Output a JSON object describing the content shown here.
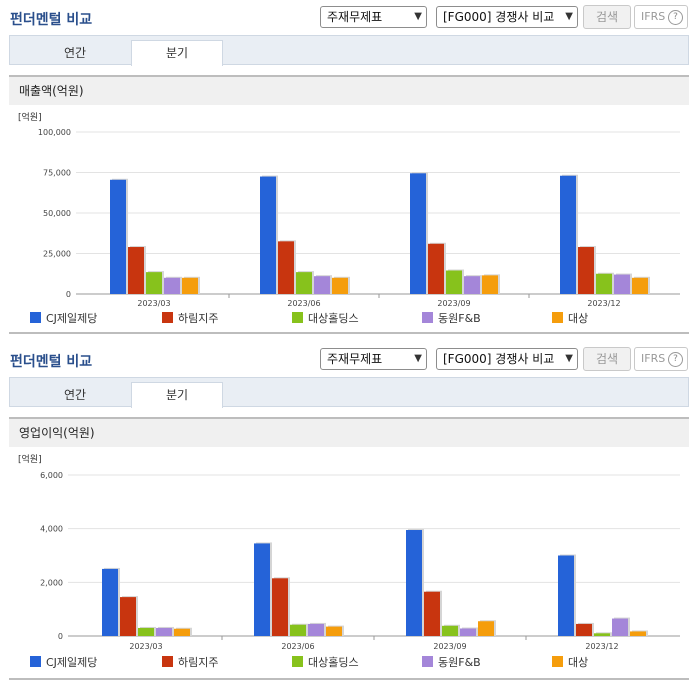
{
  "panels": [
    {
      "header_title": "펀더멘털 비교",
      "statement_select": "주재무제표",
      "peer_select": "[FG000] 경쟁사 비교",
      "search_label": "검색",
      "ifrs_label": "IFRS",
      "help_glyph": "?",
      "tabs": [
        {
          "label": "연간",
          "active": false
        },
        {
          "label": "분기",
          "active": true
        }
      ],
      "section_title": "매출액(억원)"
    },
    {
      "header_title": "펀더멘털 비교",
      "statement_select": "주재무제표",
      "peer_select": "[FG000] 경쟁사 비교",
      "search_label": "검색",
      "ifrs_label": "IFRS",
      "help_glyph": "?",
      "tabs": [
        {
          "label": "연간",
          "active": false
        },
        {
          "label": "분기",
          "active": true
        }
      ],
      "section_title": "영업이익(억원)"
    }
  ],
  "chart_data": [
    {
      "type": "bar",
      "unit_label": "[억원]",
      "categories": [
        "2023/03",
        "2023/06",
        "2023/09",
        "2023/12"
      ],
      "ylim": [
        0,
        100000
      ],
      "yticks": [
        0,
        25000,
        50000,
        75000,
        100000
      ],
      "ytick_labels": [
        "0",
        "25,000",
        "50,000",
        "75,000",
        "100,000"
      ],
      "grid": true,
      "legend_position": "bottom",
      "series": [
        {
          "name": "CJ제일제당",
          "color": "#2563d8",
          "values": [
            70500,
            72500,
            74500,
            73000
          ]
        },
        {
          "name": "하림지주",
          "color": "#c8350f",
          "values": [
            29000,
            32500,
            31000,
            29000
          ]
        },
        {
          "name": "대상홀딩스",
          "color": "#87c21c",
          "values": [
            13500,
            13500,
            14500,
            12500
          ]
        },
        {
          "name": "동원F&B",
          "color": "#a486d9",
          "values": [
            10000,
            11000,
            11000,
            12000
          ]
        },
        {
          "name": "대상",
          "color": "#f59d0c",
          "values": [
            10000,
            10000,
            11500,
            10000
          ]
        }
      ]
    },
    {
      "type": "bar",
      "unit_label": "[억원]",
      "categories": [
        "2023/03",
        "2023/06",
        "2023/09",
        "2023/12"
      ],
      "ylim": [
        0,
        6000
      ],
      "yticks": [
        0,
        2000,
        4000,
        6000
      ],
      "ytick_labels": [
        "0",
        "2,000",
        "4,000",
        "6,000"
      ],
      "grid": true,
      "legend_position": "bottom",
      "series": [
        {
          "name": "CJ제일제당",
          "color": "#2563d8",
          "values": [
            2500,
            3450,
            3950,
            3000
          ]
        },
        {
          "name": "하림지주",
          "color": "#c8350f",
          "values": [
            1450,
            2150,
            1650,
            450
          ]
        },
        {
          "name": "대상홀딩스",
          "color": "#87c21c",
          "values": [
            300,
            420,
            380,
            100
          ]
        },
        {
          "name": "동원F&B",
          "color": "#a486d9",
          "values": [
            300,
            450,
            280,
            650
          ]
        },
        {
          "name": "대상",
          "color": "#f59d0c",
          "values": [
            270,
            350,
            550,
            170
          ]
        }
      ]
    }
  ]
}
